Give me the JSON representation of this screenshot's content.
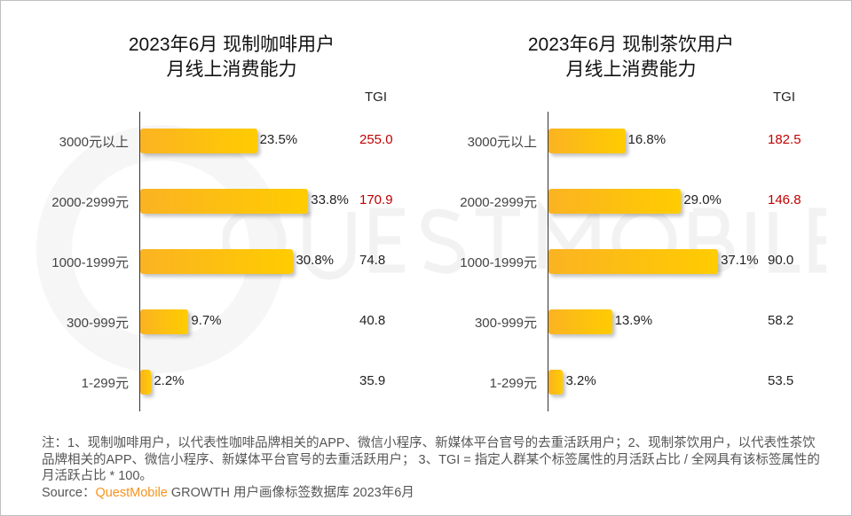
{
  "footnote": "注：1、现制咖啡用户，以代表性咖啡品牌相关的APP、微信小程序、新媒体平台官号的去重活跃用户；2、现制茶饮用户，以代表性茶饮品牌相关的APP、微信小程序、新媒体平台官号的去重活跃用户； 3、TGI = 指定人群某个标签属性的月活跃占比 / 全网具有该标签属性的月活跃占比 * 100。",
  "source": {
    "label": "Source：",
    "brand": "QuestMobile",
    "text": " GROWTH 用户画像标签数据库 2023年6月"
  },
  "watermark": "QUESTMOBILE",
  "colors": {
    "bar_start": "#fbb322",
    "bar_end": "#ffcc00",
    "tgi_high": "#c00000",
    "tgi_normal": "#222222"
  },
  "chart_data": [
    {
      "type": "bar",
      "orientation": "horizontal",
      "title_line1": "2023年6月 现制咖啡用户",
      "title_line2": "月线上消费能力",
      "tgi_header": "TGI",
      "categories": [
        "3000元以上",
        "2000-2999元",
        "1000-1999元",
        "300-999元",
        "1-299元"
      ],
      "values": [
        23.5,
        33.8,
        30.8,
        9.7,
        2.2
      ],
      "labels": [
        "23.5%",
        "33.8%",
        "30.8%",
        "9.7%",
        "2.2%"
      ],
      "tgi": [
        "255.0",
        "170.9",
        "74.8",
        "40.8",
        "35.9"
      ],
      "tgi_highlight": [
        true,
        true,
        false,
        false,
        false
      ]
    },
    {
      "type": "bar",
      "orientation": "horizontal",
      "title_line1": "2023年6月 现制茶饮用户",
      "title_line2": "月线上消费能力",
      "tgi_header": "TGI",
      "categories": [
        "3000元以上",
        "2000-2999元",
        "1000-1999元",
        "300-999元",
        "1-299元"
      ],
      "values": [
        16.8,
        29.0,
        37.1,
        13.9,
        3.2
      ],
      "labels": [
        "16.8%",
        "29.0%",
        "37.1%",
        "13.9%",
        "3.2%"
      ],
      "tgi": [
        "182.5",
        "146.8",
        "90.0",
        "58.2",
        "53.5"
      ],
      "tgi_highlight": [
        true,
        true,
        false,
        false,
        false
      ]
    }
  ]
}
